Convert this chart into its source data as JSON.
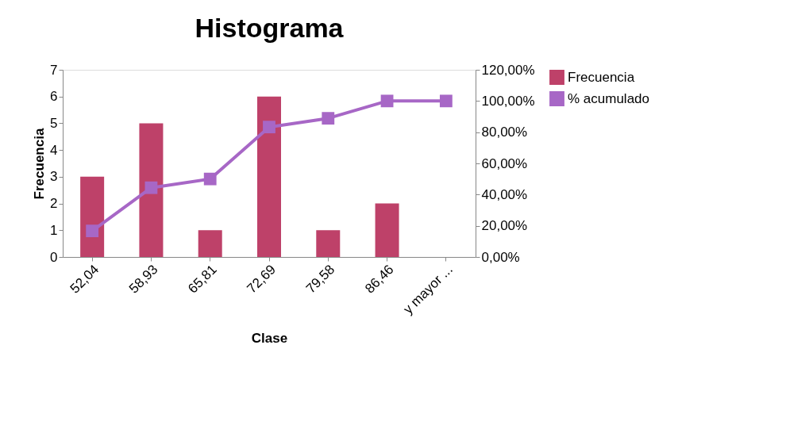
{
  "chart_data": {
    "type": "bar",
    "title": "Histograma",
    "xlabel": "Clase",
    "ylabel": "Frecuencia",
    "categories": [
      "52,04",
      "58,93",
      "65,81",
      "72,69",
      "79,58",
      "86,46",
      "y mayor ..."
    ],
    "series": [
      {
        "name": "Frecuencia",
        "color": "#be4169",
        "values": [
          3,
          5,
          1,
          6,
          1,
          2,
          0
        ]
      },
      {
        "name": "% acumulado",
        "color": "#a767c6",
        "type": "line",
        "axis": "y2",
        "values": [
          16.7,
          44.4,
          50,
          83.3,
          88.9,
          100,
          100
        ]
      }
    ],
    "ylim": [
      0,
      7
    ],
    "yticks": [
      0,
      1,
      2,
      3,
      4,
      5,
      6,
      7
    ],
    "y2lim": [
      0,
      120
    ],
    "y2ticks": [
      {
        "value": 0,
        "label": "0,00%"
      },
      {
        "value": 20,
        "label": "20,00%"
      },
      {
        "value": 40,
        "label": "40,00%"
      },
      {
        "value": 60,
        "label": "60,00%"
      },
      {
        "value": 80,
        "label": "80,00%"
      },
      {
        "value": 100,
        "label": "100,00%"
      },
      {
        "value": 120,
        "label": "120,00%"
      }
    ],
    "legend": "right",
    "marker": "square",
    "line_style": "solid"
  }
}
